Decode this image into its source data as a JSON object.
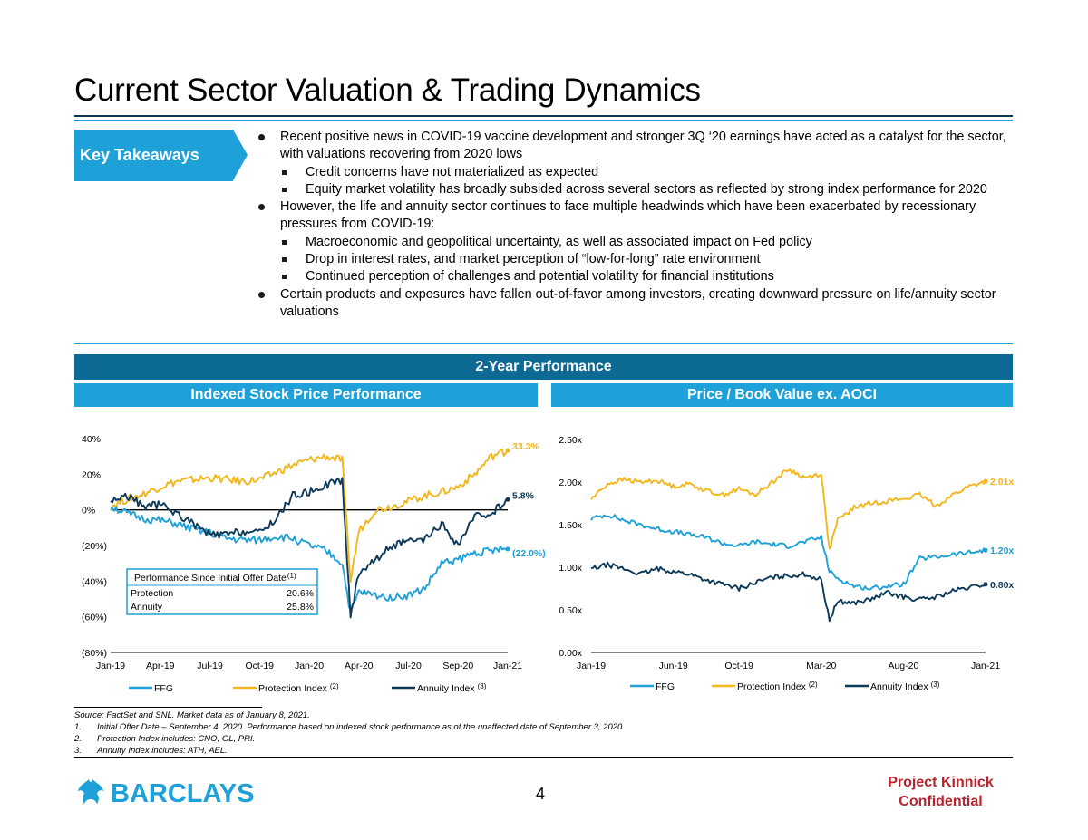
{
  "page": {
    "title": "Current Sector Valuation & Trading Dynamics",
    "page_number": "4",
    "project_name": "Project Kinnick",
    "confidential": "Confidential",
    "logo_text": "BARCLAYS"
  },
  "key_takeaways": {
    "label": "Key Takeaways",
    "bullets": [
      {
        "text": "Recent positive news in COVID-19 vaccine development and stronger 3Q ‘20 earnings have acted as a catalyst for the sector, with valuations recovering from 2020 lows",
        "sub": [
          "Credit concerns have not materialized as expected",
          "Equity market volatility has broadly subsided across several sectors as reflected by strong index performance for 2020"
        ]
      },
      {
        "text": "However, the life and annuity sector continues to face multiple headwinds which have been exacerbated by recessionary pressures from COVID-19:",
        "sub": [
          "Macroeconomic and geopolitical uncertainty, as well as associated impact on Fed policy",
          "Drop in interest rates, and market perception of “low-for-long” rate environment",
          "Continued perception of challenges and potential volatility for financial institutions"
        ]
      },
      {
        "text": "Certain products and exposures have fallen out-of-favor among investors, creating downward pressure on life/annuity sector valuations",
        "sub": []
      }
    ]
  },
  "section_banner": "2-Year Performance",
  "colors": {
    "ffg": "#1ea0d8",
    "protection": "#f3b61b",
    "annuity": "#0e3a5a",
    "banner": "#0d6a94",
    "accent": "#1ea0d8",
    "brand": "#b8232d"
  },
  "chart_data": [
    {
      "type": "line",
      "title": "Indexed Stock Price Performance",
      "x_ticks": [
        "Jan-19",
        "Apr-19",
        "Jul-19",
        "Oct-19",
        "Jan-20",
        "Apr-20",
        "Jul-20",
        "Sep-20",
        "Jan-21"
      ],
      "y_ticks": [
        "40%",
        "20%",
        "0%",
        "(20%)",
        "(40%)",
        "(60%)",
        "(80%)"
      ],
      "ylim": [
        -80,
        40
      ],
      "x_months": [
        0,
        3,
        6,
        9,
        12,
        15,
        18,
        21,
        24
      ],
      "series": [
        {
          "name": "FFG",
          "end_label": "(22.0%)",
          "x": [
            0,
            1,
            2,
            3,
            4,
            5,
            6,
            7,
            8,
            9,
            10,
            11,
            12,
            13,
            14,
            14.5,
            15,
            16,
            17,
            18,
            19,
            20,
            21,
            22,
            23,
            24
          ],
          "values": [
            2,
            -2,
            -5,
            -6,
            -8,
            -11,
            -13,
            -16,
            -17,
            -17,
            -15,
            -16,
            -20,
            -23,
            -30,
            -58,
            -46,
            -48,
            -49,
            -48,
            -44,
            -30,
            -28,
            -24,
            -23,
            -22
          ]
        },
        {
          "name": "Protection Index",
          "superscript": "(2)",
          "end_label": "33.3%",
          "x": [
            0,
            1,
            2,
            3,
            4,
            5,
            6,
            7,
            8,
            9,
            10,
            11,
            12,
            13,
            14,
            14.5,
            15,
            16,
            17,
            18,
            19,
            20,
            21,
            22,
            23,
            24
          ],
          "values": [
            2,
            6,
            9,
            13,
            16,
            17,
            18,
            17,
            16,
            17,
            21,
            25,
            28,
            30,
            28,
            -40,
            -12,
            0,
            2,
            5,
            8,
            10,
            13,
            20,
            30,
            33.3
          ]
        },
        {
          "name": "Annuity Index",
          "superscript": "(3)",
          "end_label": "5.8%",
          "x": [
            0,
            1,
            2,
            3,
            4,
            5,
            6,
            7,
            8,
            9,
            10,
            11,
            12,
            13,
            14,
            14.5,
            15,
            16,
            17,
            18,
            19,
            20,
            21,
            22,
            23,
            24
          ],
          "values": [
            5,
            8,
            2,
            3,
            -2,
            -8,
            -14,
            -14,
            -12,
            -13,
            -5,
            8,
            10,
            14,
            17,
            -60,
            -35,
            -28,
            -20,
            -18,
            -17,
            -8,
            -20,
            -4,
            -2,
            5.8
          ]
        }
      ],
      "reference_line": 0,
      "inset_table": {
        "title": "Performance Since Initial Offer Date",
        "superscript": "(1)",
        "rows": [
          {
            "label": "Protection",
            "value": "20.6%"
          },
          {
            "label": "Annuity",
            "value": "25.8%"
          }
        ]
      }
    },
    {
      "type": "line",
      "title": "Price / Book Value ex. AOCI",
      "x_ticks": [
        "Jan-19",
        "Jun-19",
        "Oct-19",
        "Mar-20",
        "Aug-20",
        "Jan-21"
      ],
      "x_months": [
        0,
        5,
        9,
        14,
        19,
        24
      ],
      "y_ticks": [
        "2.50x",
        "2.00x",
        "1.50x",
        "1.00x",
        "0.50x",
        "0.00x"
      ],
      "ylim": [
        0,
        2.5
      ],
      "series": [
        {
          "name": "FFG",
          "end_label": "1.20x",
          "x": [
            0,
            1,
            2,
            3,
            4,
            5,
            6,
            7,
            8,
            9,
            10,
            11,
            12,
            13,
            14,
            14.5,
            15,
            16,
            17,
            18,
            19,
            20,
            21,
            22,
            23,
            24
          ],
          "values": [
            1.57,
            1.62,
            1.55,
            1.5,
            1.45,
            1.42,
            1.38,
            1.35,
            1.28,
            1.25,
            1.3,
            1.27,
            1.25,
            1.3,
            1.35,
            0.95,
            0.87,
            0.78,
            0.75,
            0.78,
            0.8,
            1.1,
            1.12,
            1.15,
            1.17,
            1.2
          ]
        },
        {
          "name": "Protection Index",
          "superscript": "(2)",
          "end_label": "2.01x",
          "x": [
            0,
            1,
            2,
            3,
            4,
            5,
            6,
            7,
            8,
            9,
            10,
            11,
            12,
            13,
            14,
            14.5,
            15,
            16,
            17,
            18,
            19,
            20,
            21,
            22,
            23,
            24
          ],
          "values": [
            1.8,
            1.98,
            2.03,
            2.0,
            2.02,
            1.95,
            1.98,
            1.9,
            1.85,
            1.92,
            1.85,
            2.0,
            2.15,
            2.05,
            2.1,
            1.2,
            1.55,
            1.7,
            1.75,
            1.78,
            1.8,
            1.85,
            1.72,
            1.85,
            1.95,
            2.01
          ]
        },
        {
          "name": "Annuity Index",
          "superscript": "(3)",
          "end_label": "0.80x",
          "x": [
            0,
            1,
            2,
            3,
            4,
            5,
            6,
            7,
            8,
            9,
            10,
            11,
            12,
            13,
            14,
            14.5,
            15,
            16,
            17,
            18,
            19,
            20,
            21,
            22,
            23,
            24
          ],
          "values": [
            0.98,
            1.03,
            0.98,
            0.92,
            0.98,
            0.95,
            0.92,
            0.85,
            0.8,
            0.75,
            0.82,
            0.88,
            0.9,
            0.92,
            0.85,
            0.38,
            0.6,
            0.58,
            0.62,
            0.7,
            0.65,
            0.62,
            0.65,
            0.72,
            0.76,
            0.8
          ]
        }
      ]
    }
  ],
  "footnotes": {
    "source": "Source: FactSet and SNL. Market data as of January 8, 2021.",
    "notes": [
      {
        "num": "1.",
        "text": "Initial Offer Date – September 4, 2020. Performance based on indexed stock performance as of the unaffected date of September 3, 2020."
      },
      {
        "num": "2.",
        "text": "Protection Index includes: CNO, GL, PRI."
      },
      {
        "num": "3.",
        "text": "Annuity Index includes: ATH, AEL."
      }
    ]
  }
}
